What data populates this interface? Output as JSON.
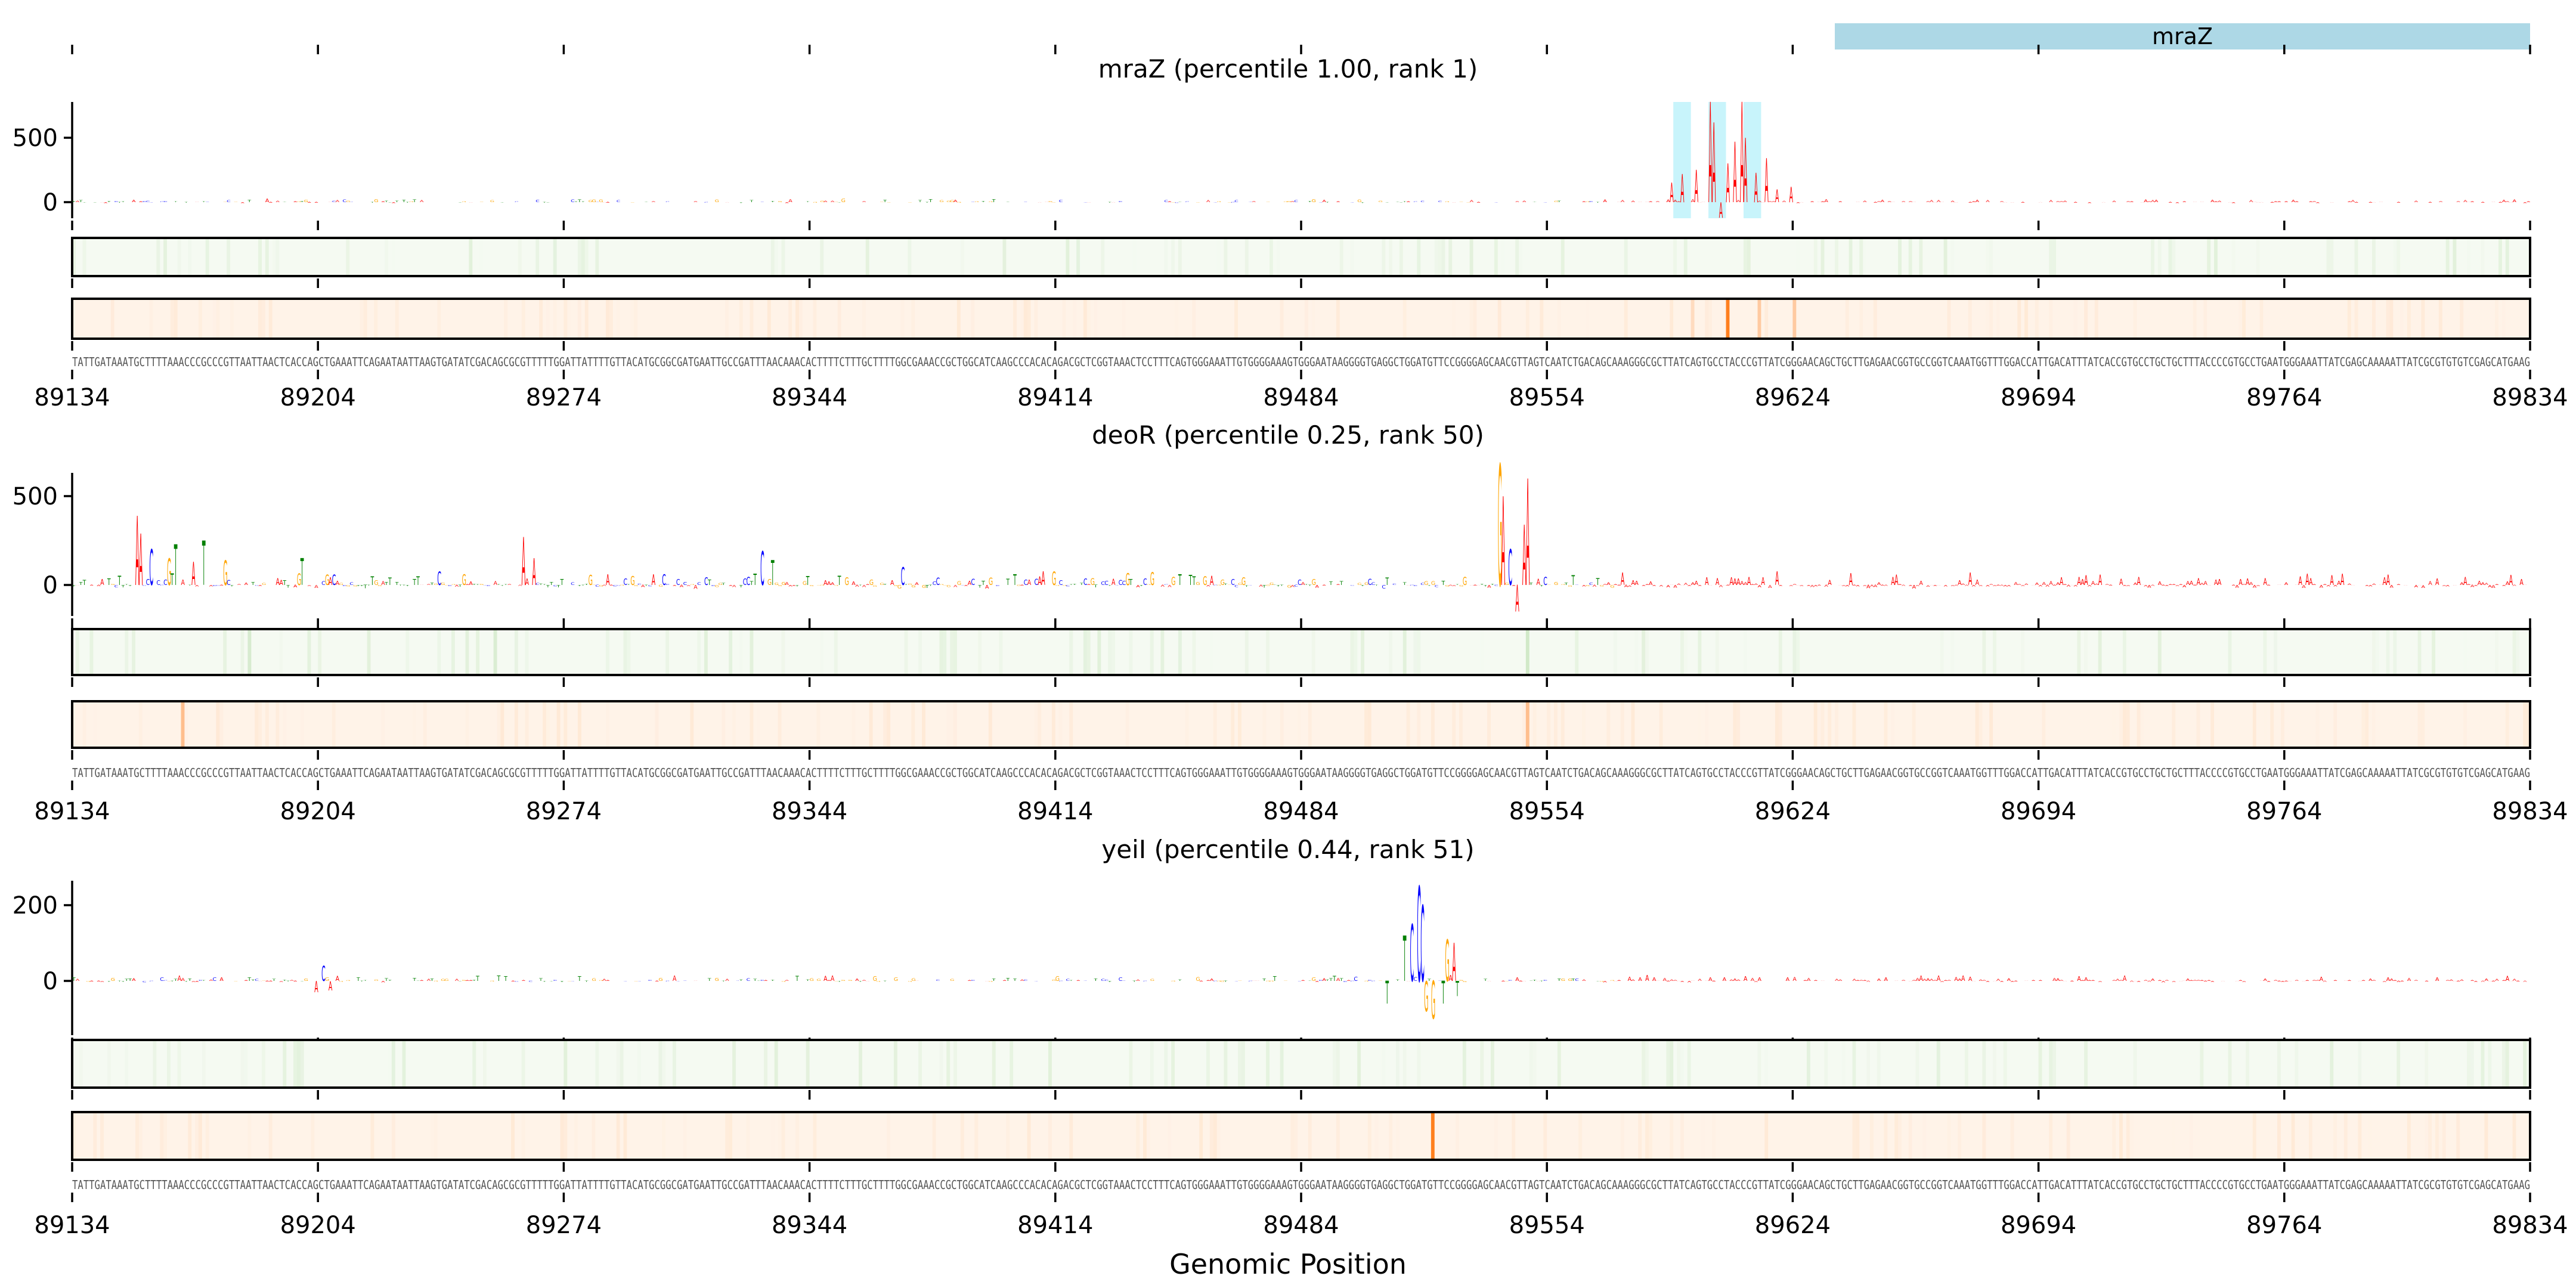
{
  "gene_track": {
    "label": "mraZ",
    "start": 89660,
    "end": 89834,
    "color": "#add8e6"
  },
  "colors": {
    "A": "#ff0000",
    "C": "#0000ff",
    "G": "#ffa500",
    "T": "#008000",
    "highlight": "#c8f4fb",
    "heat_green": "#f5faf2",
    "heat_orange": "#fff3e8",
    "stripe_orange": "#ff7f1e"
  },
  "sequence": "TATTGATAAATGCTTTTAAACCCGCCCGTTAATTAACTCACCAGCTGAAATTCAGAATAATTAAGTGATATCGACAGCGCGTTTTTGGATTATTTTGTTACATGCGGCGATGAATTGCCGATTTAACAAACACTTTTCTTTGCTTTTGGCGAAACCGCTGGCATCAAGCCCACACAGACGCTCGGTAAACTCCTTTCAGTGGGAAATTGTGGGGAAAGTGGGAATAAGGGGTGAGGCTGGATGTTCCGGGGAGCAACGTTAGTCAATCTGACAGCAAAGGGCGCTTATCAGTGCCTACCCGTTATCGGGAACAGCTGCTTGAGAACGGTGCCGGTCAAATGGTTTGGACCATTGACATTTATCACCGTGCCTGCTGCTTTACCCCGTGCCTGAATGGGAAATTATCGAGCAAAAATTATCGCGTGTGTCGAGCATGAAG",
  "xlabel": "Genomic Position",
  "chart_data": [
    {
      "type": "bar",
      "title": "mraZ (percentile 1.00, rank 1)",
      "xlim": [
        89134,
        89834
      ],
      "xticks": [
        "89134",
        "89204",
        "89274",
        "89344",
        "89414",
        "89484",
        "89554",
        "89624",
        "89694",
        "89764",
        "89834"
      ],
      "ylim": [
        -128,
        782
      ],
      "yticks": [
        "500",
        "0"
      ],
      "ytick_values": [
        500,
        0
      ],
      "noise_amplitude": 14,
      "peaks": [
        [
          89589,
          150
        ],
        [
          89592,
          220
        ],
        [
          89596,
          250
        ],
        [
          89600,
          780
        ],
        [
          89601,
          620
        ],
        [
          89603,
          -120
        ],
        [
          89605,
          300
        ],
        [
          89607,
          470
        ],
        [
          89609,
          780
        ],
        [
          89610,
          500
        ],
        [
          89613,
          230
        ],
        [
          89616,
          340
        ],
        [
          89619,
          100
        ],
        [
          89623,
          120
        ]
      ],
      "highlights": [
        [
          89590,
          89595
        ],
        [
          89600,
          89605
        ],
        [
          89610,
          89615
        ]
      ],
      "orange_stripes": [
        [
          89595,
          0.2
        ],
        [
          89605,
          1.0
        ],
        [
          89614,
          0.35
        ],
        [
          89624,
          0.35
        ]
      ],
      "green_stripes": []
    },
    {
      "type": "bar",
      "title": "deoR (percentile 0.25, rank 50)",
      "xlim": [
        89134,
        89834
      ],
      "xticks": [
        "89134",
        "89204",
        "89274",
        "89344",
        "89414",
        "89484",
        "89554",
        "89624",
        "89694",
        "89764",
        "89834"
      ],
      "ylim": [
        -176,
        657
      ],
      "yticks": [
        "500",
        "0"
      ],
      "ytick_values": [
        500,
        0
      ],
      "noise_amplitude": 45,
      "peaks": [
        [
          89152,
          390
        ],
        [
          89153,
          290
        ],
        [
          89156,
          200
        ],
        [
          89161,
          150
        ],
        [
          89163,
          230
        ],
        [
          89168,
          130
        ],
        [
          89171,
          250
        ],
        [
          89177,
          140
        ],
        [
          89199,
          150
        ],
        [
          89262,
          270
        ],
        [
          89265,
          150
        ],
        [
          89330,
          190
        ],
        [
          89333,
          140
        ],
        [
          89370,
          100
        ],
        [
          89540,
          680
        ],
        [
          89541,
          500
        ],
        [
          89543,
          200
        ],
        [
          89545,
          -150
        ],
        [
          89547,
          340
        ],
        [
          89548,
          600
        ]
      ],
      "highlights": [],
      "orange_stripes": [
        [
          89165,
          0.45
        ],
        [
          89548,
          0.45
        ]
      ],
      "green_stripes": [
        [
          89184,
          0.3
        ],
        [
          89254,
          0.3
        ],
        [
          89548,
          0.4
        ]
      ]
    },
    {
      "type": "bar",
      "title": "yeiI (percentile 0.44, rank 51)",
      "xlim": [
        89134,
        89834
      ],
      "xticks": [
        "89134",
        "89204",
        "89274",
        "89344",
        "89414",
        "89484",
        "89554",
        "89624",
        "89694",
        "89764",
        "89834"
      ],
      "ylim": [
        -143,
        265
      ],
      "yticks": [
        "200",
        "0"
      ],
      "ytick_values": [
        200,
        0
      ],
      "noise_amplitude": 8,
      "peaks": [
        [
          89203,
          -30
        ],
        [
          89205,
          40
        ],
        [
          89207,
          -25
        ],
        [
          89508,
          -60
        ],
        [
          89513,
          120
        ],
        [
          89515,
          150
        ],
        [
          89517,
          250
        ],
        [
          89518,
          200
        ],
        [
          89519,
          -80
        ],
        [
          89521,
          -100
        ],
        [
          89524,
          -60
        ],
        [
          89525,
          110
        ],
        [
          89527,
          100
        ],
        [
          89528,
          -40
        ]
      ],
      "highlights": [],
      "orange_stripes": [
        [
          89521,
          1.0
        ]
      ],
      "green_stripes": [
        [
          89198,
          0.2
        ]
      ]
    }
  ]
}
